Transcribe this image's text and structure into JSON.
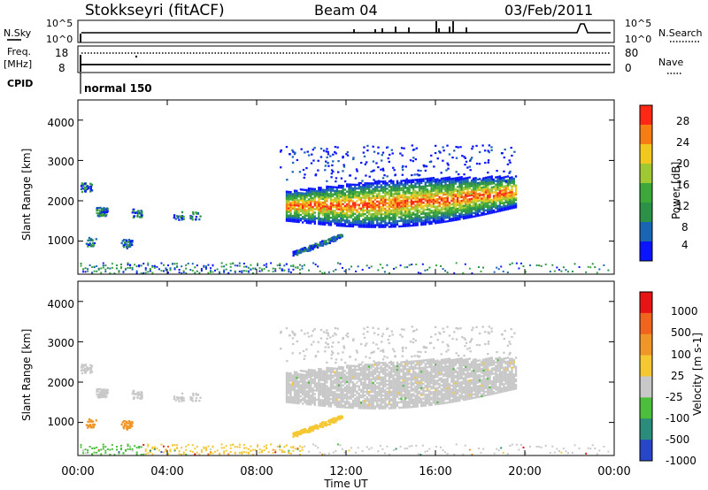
{
  "header": {
    "station": "Stokkseyri (fitACF)",
    "beam": "Beam 04",
    "date": "03/Feb/2011"
  },
  "status_panels": {
    "nsky_label": "N.Sky",
    "nsearch_label": "N.Search",
    "freq_label_line1": "Freq.",
    "freq_label_line2": "[MHz]",
    "nave_label": "Nave",
    "cpid_label": "CPID",
    "cpid_value": "normal 150",
    "nsky_ticks": [
      "10^5",
      "10^0"
    ],
    "nsearch_ticks": [
      "10^5",
      "10^0"
    ],
    "freq_ticks": [
      "18",
      "8"
    ],
    "nave_ticks": [
      "80",
      "0"
    ]
  },
  "chart_data": [
    {
      "type": "heatmap",
      "name": "power",
      "ylabel": "Slant Range [km]",
      "yticks": [
        "4000",
        "3000",
        "2000",
        "1000"
      ],
      "ylim": [
        180,
        4500
      ],
      "colorbar": {
        "label": "Power [dB]",
        "ticks": [
          "28",
          "24",
          "20",
          "16",
          "12",
          "8",
          "4"
        ],
        "colors": [
          "#0a14ff",
          "#1a64b4",
          "#2a9146",
          "#3ca83a",
          "#a0c832",
          "#f0c81e",
          "#f57d14",
          "#ff2814"
        ]
      }
    },
    {
      "type": "heatmap",
      "name": "velocity",
      "ylabel": "Slant Range [km]",
      "yticks": [
        "4000",
        "3000",
        "2000",
        "1000"
      ],
      "ylim": [
        180,
        4500
      ],
      "xlabel": "Time UT",
      "xticks": [
        "00:00",
        "04:00",
        "08:00",
        "12:00",
        "16:00",
        "20:00",
        "00:00"
      ],
      "colorbar": {
        "label": "Velocity [m s-1]",
        "ticks": [
          "1000",
          "500",
          "100",
          "25",
          "-25",
          "-100",
          "-500",
          "-1000"
        ],
        "colors": [
          "#2846c8",
          "#2a8c7a",
          "#4bbe3c",
          "#c8c8c8",
          "#f5c832",
          "#f09628",
          "#f0641e",
          "#e61414"
        ]
      }
    }
  ]
}
